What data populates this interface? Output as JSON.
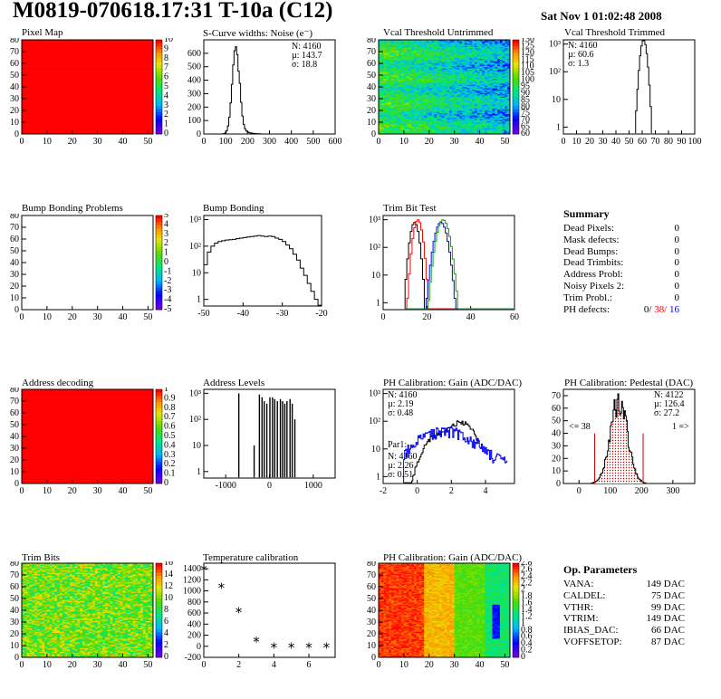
{
  "header": {
    "title": "M0819-070618.17:31 T-10a (C12)",
    "date": "Sat Nov  1 01:02:48 2008"
  },
  "panels": {
    "pixel_map": {
      "title": "Pixel Map",
      "color": "#ff0000"
    },
    "scurve": {
      "title": "S-Curve widths: Noise (e⁻)",
      "N": "N: 4160",
      "mu": "µ: 143.7",
      "sigma": "σ: 18.8"
    },
    "vcal_untrimmed": {
      "title": "Vcal Threshold Untrimmed"
    },
    "vcal_trimmed": {
      "title": "Vcal Threshold Trimmed",
      "N": "N: 4160",
      "mu": "µ: 60.6",
      "sigma": "σ:  1.3"
    },
    "bump_problems": {
      "title": "Bump Bonding Problems"
    },
    "bump_bonding": {
      "title": "Bump Bonding"
    },
    "trim_bit_test": {
      "title": "Trim Bit Test"
    },
    "address_decoding": {
      "title": "Address decoding",
      "color": "#ff0000"
    },
    "address_levels": {
      "title": "Address Levels"
    },
    "ph_gain": {
      "title": "PH Calibration: Gain (ADC/DAC)",
      "N": "N: 4160",
      "mu": "µ: 2.19",
      "sigma": "σ: 0.48",
      "par1": "Par1:",
      "N2": "N: 4160",
      "mu2": "µ: 2.26",
      "sigma2": "σ: 0.51"
    },
    "ph_pedestal": {
      "title": "PH Calibration: Pedestal (DAC)",
      "N": "N: 4122",
      "mu": "µ: 126.4",
      "sigma": "σ: 27.2",
      "left": "<= 38",
      "right": "1 =>"
    },
    "trim_bits": {
      "title": "Trim Bits"
    },
    "temperature": {
      "title": "Temperature calibration"
    },
    "ph_gain_map": {
      "title": "PH Calibration: Gain (ADC/DAC)"
    }
  },
  "summary": {
    "title": "Summary",
    "rows": [
      {
        "k": "Dead Pixels:",
        "v": "0"
      },
      {
        "k": "Mask defects:",
        "v": "0"
      },
      {
        "k": "Dead Bumps:",
        "v": "0"
      },
      {
        "k": "Dead Trimbits:",
        "v": "0"
      },
      {
        "k": "Address Probl:",
        "v": "0"
      },
      {
        "k": "Noisy Pixels 2:",
        "v": "0"
      },
      {
        "k": "Trim Probl.:",
        "v": "0"
      }
    ],
    "ph_label": "PH defects:",
    "ph_a": "0/",
    "ph_b": "38/",
    "ph_c": "16"
  },
  "op_params": {
    "title": "Op. Parameters",
    "rows": [
      {
        "k": "VANA:",
        "v": "149 DAC"
      },
      {
        "k": "CALDEL:",
        "v": "75 DAC"
      },
      {
        "k": "VTHR:",
        "v": "99 DAC"
      },
      {
        "k": "VTRIM:",
        "v": "149 DAC"
      },
      {
        "k": "IBIAS_DAC:",
        "v": "66 DAC"
      },
      {
        "k": "VOFFSETOP:",
        "v": "87 DAC"
      }
    ]
  },
  "chart_data": [
    {
      "type": "heatmap",
      "title": "Pixel Map",
      "xlim": [
        0,
        52
      ],
      "ylim": [
        0,
        80
      ],
      "xticks": [
        0,
        10,
        20,
        30,
        40,
        50
      ],
      "yticks": [
        0,
        10,
        20,
        30,
        40,
        50,
        60,
        70,
        80
      ],
      "uniform_value": 10,
      "zticks": [
        0,
        1,
        2,
        3,
        4,
        5,
        6,
        7,
        8,
        9,
        10
      ]
    },
    {
      "type": "bar",
      "title": "S-Curve widths: Noise (e⁻)",
      "xlim": [
        0,
        600
      ],
      "ylim": [
        0,
        700
      ],
      "xticks": [
        0,
        100,
        200,
        300,
        400,
        500,
        600
      ],
      "yticks": [
        0,
        100,
        200,
        300,
        400,
        500,
        600
      ],
      "mean": 143.7,
      "sigma": 18.8,
      "entries": 4160
    },
    {
      "type": "heatmap",
      "title": "Vcal Threshold Untrimmed",
      "xlim": [
        0,
        52
      ],
      "ylim": [
        0,
        80
      ],
      "xticks": [
        0,
        10,
        20,
        30,
        40,
        50
      ],
      "yticks": [
        0,
        10,
        20,
        30,
        40,
        50,
        60,
        70,
        80
      ],
      "zticks": [
        60,
        65,
        70,
        75,
        80,
        85,
        90,
        95,
        100,
        105,
        110,
        115,
        120,
        125,
        130
      ]
    },
    {
      "type": "bar",
      "title": "Vcal Threshold Trimmed",
      "scale": "log",
      "xlim": [
        0,
        100
      ],
      "xticks": [
        0,
        10,
        20,
        30,
        40,
        50,
        60,
        70,
        80,
        90,
        100
      ],
      "yticks": [
        "1",
        "10",
        "10²",
        "10³"
      ],
      "mean": 60.6,
      "sigma": 1.3,
      "entries": 4160
    },
    {
      "type": "heatmap",
      "title": "Bump Bonding Problems",
      "xlim": [
        0,
        52
      ],
      "ylim": [
        0,
        80
      ],
      "xticks": [
        0,
        10,
        20,
        30,
        40,
        50
      ],
      "yticks": [
        0,
        10,
        20,
        30,
        40,
        50,
        60,
        70,
        80
      ],
      "zticks": [
        -5,
        -4,
        -3,
        -2,
        -1,
        0,
        1,
        2,
        3,
        4,
        5
      ]
    },
    {
      "type": "bar",
      "title": "Bump Bonding",
      "scale": "log",
      "xlim": [
        -50,
        -20
      ],
      "xticks": [
        -50,
        -40,
        -30,
        -20
      ],
      "yticks": [
        "1",
        "10",
        "10²",
        "10³"
      ]
    },
    {
      "type": "line",
      "title": "Trim Bit Test",
      "scale": "log",
      "xlim": [
        0,
        60
      ],
      "xticks": [
        0,
        20,
        40,
        60
      ],
      "yticks": [
        "1",
        "10",
        "10²",
        "10³"
      ],
      "series": [
        {
          "color": "#000000",
          "center": 14
        },
        {
          "color": "#ff0000",
          "center": 15.5
        },
        {
          "color": "#0000ff",
          "center": 26
        },
        {
          "color": "#00aa00",
          "center": 27
        }
      ]
    },
    {
      "type": "heatmap",
      "title": "Address decoding",
      "xlim": [
        0,
        52
      ],
      "ylim": [
        0,
        80
      ],
      "xticks": [
        0,
        10,
        20,
        30,
        40,
        50
      ],
      "yticks": [
        0,
        10,
        20,
        30,
        40,
        50,
        60,
        70,
        80
      ],
      "uniform_value": 1,
      "zticks": [
        0,
        0.1,
        0.2,
        0.3,
        0.4,
        0.5,
        0.6,
        0.7,
        0.8,
        0.9,
        1
      ]
    },
    {
      "type": "bar",
      "title": "Address Levels",
      "scale": "log",
      "xlim": [
        -1500,
        1500
      ],
      "xticks": [
        -1000,
        0,
        1000
      ],
      "yticks": [
        "1",
        "10",
        "10²",
        "10³"
      ],
      "x": [
        -700,
        -350,
        -230,
        -170,
        -120,
        -60,
        10,
        70,
        120,
        180,
        250,
        300,
        350,
        400,
        470,
        520,
        580
      ],
      "values": [
        1000,
        10,
        900,
        700,
        500,
        400,
        700,
        700,
        600,
        500,
        600,
        500,
        400,
        500,
        600,
        400,
        100
      ]
    },
    {
      "type": "line",
      "title": "PH Calibration: Gain (ADC/DAC)",
      "scale": "log",
      "xlim": [
        -2,
        5.7
      ],
      "xticks": [
        -2,
        0,
        2,
        4
      ],
      "yticks": [
        "1",
        "10",
        "10²",
        "10³"
      ],
      "series": [
        {
          "color": "#000000",
          "mean": 2.19,
          "sigma": 0.48,
          "entries": 4160
        },
        {
          "name": "Par1:",
          "color": "#0000ff",
          "mean": 2.26,
          "sigma": 0.51,
          "entries": 4160
        }
      ]
    },
    {
      "type": "bar",
      "title": "PH Calibration: Pedestal (DAC)",
      "xlim": [
        -50,
        370
      ],
      "ylim": [
        0,
        75
      ],
      "xticks": [
        0,
        100,
        200,
        300
      ],
      "yticks": [
        0,
        10,
        20,
        30,
        40,
        50,
        60,
        70
      ],
      "mean": 126.4,
      "sigma": 27.2,
      "entries": 4122,
      "cut_low": 50,
      "cut_high": 205
    },
    {
      "type": "heatmap",
      "title": "Trim Bits",
      "xlim": [
        0,
        52
      ],
      "ylim": [
        0,
        80
      ],
      "xticks": [
        0,
        10,
        20,
        30,
        40,
        50
      ],
      "yticks": [
        0,
        10,
        20,
        30,
        40,
        50,
        60,
        70,
        80
      ],
      "zticks": [
        0,
        2,
        4,
        6,
        8,
        10,
        12,
        14,
        16
      ]
    },
    {
      "type": "scatter",
      "title": "Temperature calibration",
      "xlim": [
        0,
        7.5
      ],
      "ylim": [
        -200,
        1500
      ],
      "xticks": [
        0,
        2,
        4,
        6
      ],
      "yticks": [
        -200,
        0,
        200,
        400,
        600,
        800,
        1000,
        1200,
        1400
      ],
      "x": [
        0,
        1,
        2,
        3,
        4,
        5,
        6,
        7
      ],
      "values": [
        1370,
        1050,
        610,
        80,
        -30,
        -30,
        -30,
        -30
      ]
    },
    {
      "type": "heatmap",
      "title": "PH Calibration: Gain (ADC/DAC)",
      "xlim": [
        0,
        52
      ],
      "ylim": [
        0,
        80
      ],
      "xticks": [
        0,
        10,
        20,
        30,
        40,
        50
      ],
      "yticks": [
        0,
        10,
        20,
        30,
        40,
        50,
        60,
        70,
        80
      ],
      "zticks": [
        0,
        0.2,
        0.4,
        0.6,
        0.8,
        1,
        1.2,
        1.4,
        1.6,
        1.8,
        2,
        2.2,
        2.4,
        2.6,
        2.8
      ]
    }
  ]
}
